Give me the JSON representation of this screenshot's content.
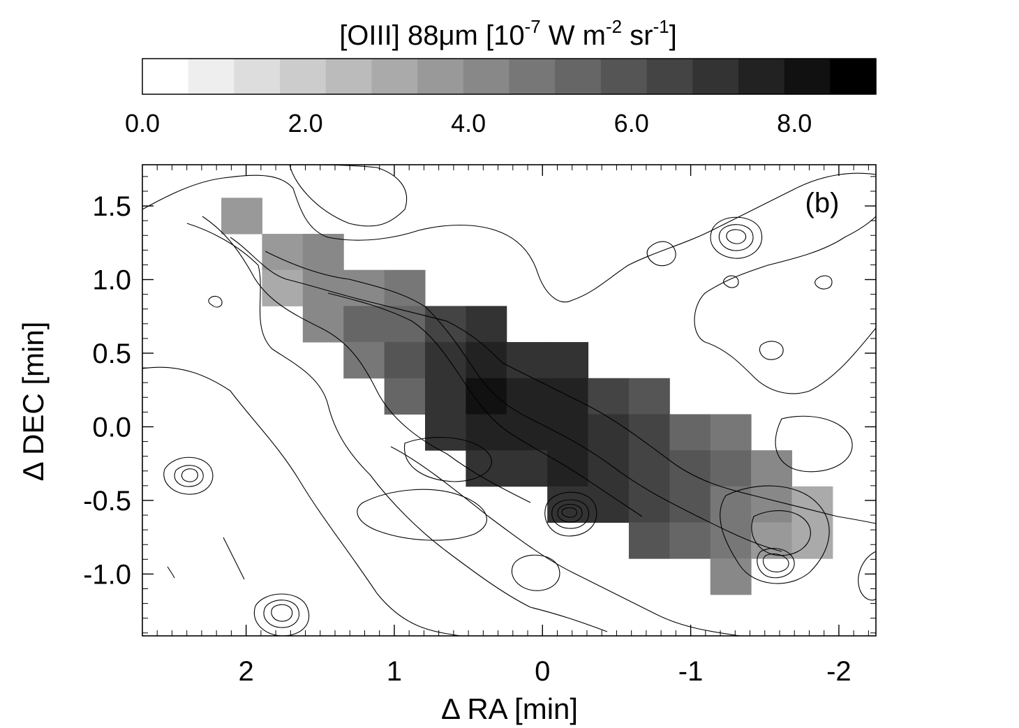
{
  "chart_data": {
    "type": "heatmap",
    "panel_label": "(b)",
    "colorbar": {
      "title_parts": {
        "prefix": "[OIII] 88μm [10",
        "exp1": "-7",
        "mid1": " W m",
        "exp2": "-2",
        "mid2": " sr",
        "exp3": "-1",
        "suffix": "]"
      },
      "range": [
        0.0,
        9.0
      ],
      "levels": 16,
      "ticks": [
        "0.0",
        "2.0",
        "4.0",
        "6.0",
        "8.0"
      ],
      "tick_values": [
        0.0,
        2.0,
        4.0,
        6.0,
        8.0
      ]
    },
    "xlabel": "Δ RA [min]",
    "ylabel": "Δ DEC [min]",
    "xlim": [
      2.7,
      -2.25
    ],
    "ylim": [
      -1.42,
      1.78
    ],
    "x_ticks": [
      {
        "value": 2,
        "label": "2"
      },
      {
        "value": 1,
        "label": "1"
      },
      {
        "value": 0,
        "label": "0"
      },
      {
        "value": -1,
        "label": "-1"
      },
      {
        "value": -2,
        "label": "-2"
      }
    ],
    "y_ticks": [
      {
        "value": 1.5,
        "label": "1.5"
      },
      {
        "value": 1.0,
        "label": "1.0"
      },
      {
        "value": 0.5,
        "label": "0.5"
      },
      {
        "value": 0.0,
        "label": "0.0"
      },
      {
        "value": -0.5,
        "label": "-0.5"
      },
      {
        "value": -1.0,
        "label": "-1.0"
      }
    ],
    "cell": {
      "width": 0.275,
      "height": 0.245
    },
    "pixels": [
      {
        "ra": 2.03,
        "dec": 1.433,
        "v": 3.5
      },
      {
        "ra": 1.755,
        "dec": 1.188,
        "v": 3.4
      },
      {
        "ra": 1.755,
        "dec": 0.943,
        "v": 3.3
      },
      {
        "ra": 1.48,
        "dec": 1.188,
        "v": 4.0
      },
      {
        "ra": 1.48,
        "dec": 0.943,
        "v": 4.0
      },
      {
        "ra": 1.48,
        "dec": 0.698,
        "v": 4.1
      },
      {
        "ra": 1.205,
        "dec": 0.943,
        "v": 4.4
      },
      {
        "ra": 1.205,
        "dec": 0.698,
        "v": 5.2
      },
      {
        "ra": 1.205,
        "dec": 0.453,
        "v": 5.0
      },
      {
        "ra": 0.93,
        "dec": 0.943,
        "v": 4.5
      },
      {
        "ra": 0.93,
        "dec": 0.698,
        "v": 5.3
      },
      {
        "ra": 0.93,
        "dec": 0.453,
        "v": 5.7
      },
      {
        "ra": 0.93,
        "dec": 0.208,
        "v": 5.2
      },
      {
        "ra": 0.655,
        "dec": 0.698,
        "v": 6.6
      },
      {
        "ra": 0.655,
        "dec": 0.453,
        "v": 7.0
      },
      {
        "ra": 0.655,
        "dec": 0.208,
        "v": 7.1
      },
      {
        "ra": 0.655,
        "dec": -0.037,
        "v": 7.1
      },
      {
        "ra": 0.38,
        "dec": 0.698,
        "v": 6.9
      },
      {
        "ra": 0.38,
        "dec": 0.453,
        "v": 7.4
      },
      {
        "ra": 0.38,
        "dec": 0.208,
        "v": 7.9
      },
      {
        "ra": 0.38,
        "dec": -0.037,
        "v": 7.4
      },
      {
        "ra": 0.38,
        "dec": -0.282,
        "v": 6.8
      },
      {
        "ra": 0.105,
        "dec": 0.453,
        "v": 7.3
      },
      {
        "ra": 0.105,
        "dec": 0.208,
        "v": 7.4
      },
      {
        "ra": 0.105,
        "dec": -0.037,
        "v": 7.4
      },
      {
        "ra": 0.105,
        "dec": -0.282,
        "v": 6.8
      },
      {
        "ra": -0.17,
        "dec": 0.453,
        "v": 7.1
      },
      {
        "ra": -0.17,
        "dec": 0.208,
        "v": 7.4
      },
      {
        "ra": -0.17,
        "dec": -0.037,
        "v": 7.4
      },
      {
        "ra": -0.17,
        "dec": -0.282,
        "v": 7.5
      },
      {
        "ra": -0.17,
        "dec": -0.527,
        "v": 7.3
      },
      {
        "ra": -0.445,
        "dec": 0.208,
        "v": 6.7
      },
      {
        "ra": -0.445,
        "dec": -0.037,
        "v": 7.1
      },
      {
        "ra": -0.445,
        "dec": -0.282,
        "v": 7.3
      },
      {
        "ra": -0.445,
        "dec": -0.527,
        "v": 7.1
      },
      {
        "ra": -0.72,
        "dec": 0.208,
        "v": 5.9
      },
      {
        "ra": -0.72,
        "dec": -0.037,
        "v": 6.4
      },
      {
        "ra": -0.72,
        "dec": -0.282,
        "v": 6.7
      },
      {
        "ra": -0.72,
        "dec": -0.527,
        "v": 6.6
      },
      {
        "ra": -0.72,
        "dec": -0.772,
        "v": 6.0
      },
      {
        "ra": -0.995,
        "dec": -0.037,
        "v": 5.6
      },
      {
        "ra": -0.995,
        "dec": -0.282,
        "v": 5.9
      },
      {
        "ra": -0.995,
        "dec": -0.527,
        "v": 5.7
      },
      {
        "ra": -0.995,
        "dec": -0.772,
        "v": 5.2
      },
      {
        "ra": -1.27,
        "dec": -0.037,
        "v": 5.0
      },
      {
        "ra": -1.27,
        "dec": -0.282,
        "v": 5.2
      },
      {
        "ra": -1.27,
        "dec": -0.527,
        "v": 4.9
      },
      {
        "ra": -1.27,
        "dec": -0.772,
        "v": 4.6
      },
      {
        "ra": -1.27,
        "dec": -1.017,
        "v": 4.4
      },
      {
        "ra": -1.545,
        "dec": -0.282,
        "v": 4.1
      },
      {
        "ra": -1.545,
        "dec": -0.527,
        "v": 4.2
      },
      {
        "ra": -1.545,
        "dec": -0.772,
        "v": 3.7
      },
      {
        "ra": -1.82,
        "dec": -0.527,
        "v": 3.3
      },
      {
        "ra": -1.82,
        "dec": -0.772,
        "v": 3.0
      }
    ]
  }
}
